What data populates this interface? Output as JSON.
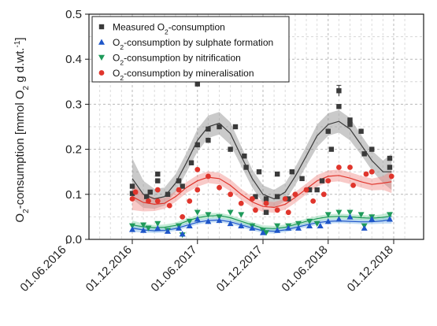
{
  "chart_data": {
    "type": "scatter",
    "title": "",
    "xlabel": "",
    "ylabel": {
      "prefix": "O",
      "sub": "2",
      "mid": "-consumption [mmol O",
      "sub2": "2",
      "tail": " g d.wt.",
      "sup": "-1",
      "end": "]"
    },
    "ylim": [
      0,
      0.5
    ],
    "yticks": [
      0.0,
      0.1,
      0.2,
      0.3,
      0.4,
      0.5
    ],
    "ytick_labels": [
      "0.0",
      "0.1",
      "0.2",
      "0.3",
      "0.4",
      "0.5"
    ],
    "xlim": [
      "2016-05-15",
      "2019-01-15"
    ],
    "xticks": [
      "2016-06-01",
      "2016-12-01",
      "2017-06-01",
      "2017-12-01",
      "2018-06-01",
      "2018-12-01"
    ],
    "xtick_labels": [
      "01.06.2016",
      "01.12.2016",
      "01.06.2017",
      "01.12.2017",
      "01.06.2018",
      "01.12.2018"
    ],
    "grid": true,
    "legend_position": "top-left",
    "legend": [
      {
        "parts": [
          "Measured O",
          "2",
          "-consumption"
        ],
        "color": "#3a3a3a",
        "marker": "square"
      },
      {
        "parts": [
          "O",
          "2",
          "-consumption by sulphate formation"
        ],
        "color": "#1f56c9",
        "marker": "triangle-up"
      },
      {
        "parts": [
          "O",
          "2",
          "-consumption by nitrification"
        ],
        "color": "#1e9a5a",
        "marker": "triangle-down"
      },
      {
        "parts": [
          "O",
          "2",
          "-consumption by mineralisation"
        ],
        "color": "#e0352c",
        "marker": "circle"
      }
    ],
    "series": [
      {
        "legend_index": 0,
        "color": "#3a3a3a",
        "band_color": "#8a8a8a",
        "marker": "square",
        "points": [
          [
            "2016-12-01",
            0.118
          ],
          [
            "2016-12-01",
            0.102
          ],
          [
            "2017-01-10",
            0.095
          ],
          [
            "2017-01-20",
            0.105
          ],
          [
            "2017-02-10",
            0.145
          ],
          [
            "2017-02-10",
            0.13
          ],
          [
            "2017-03-10",
            0.1
          ],
          [
            "2017-04-10",
            0.13
          ],
          [
            "2017-04-20",
            0.118
          ],
          [
            "2017-05-15",
            0.17
          ],
          [
            "2017-06-01",
            0.345
          ],
          [
            "2017-06-01",
            0.21
          ],
          [
            "2017-07-01",
            0.245
          ],
          [
            "2017-07-01",
            0.22
          ],
          [
            "2017-08-01",
            0.25
          ],
          [
            "2017-09-01",
            0.2
          ],
          [
            "2017-09-15",
            0.25
          ],
          [
            "2017-10-10",
            0.185
          ],
          [
            "2017-10-15",
            0.16
          ],
          [
            "2017-11-10",
            0.095
          ],
          [
            "2017-11-20",
            0.15
          ],
          [
            "2017-12-10",
            0.06
          ],
          [
            "2017-12-10",
            0.09
          ],
          [
            "2018-01-10",
            0.095
          ],
          [
            "2018-01-10",
            0.145
          ],
          [
            "2018-02-10",
            0.09
          ],
          [
            "2018-02-20",
            0.15
          ],
          [
            "2018-03-20",
            0.135
          ],
          [
            "2018-04-10",
            0.11
          ],
          [
            "2018-05-01",
            0.11
          ],
          [
            "2018-05-15",
            0.13
          ],
          [
            "2018-06-01",
            0.24
          ],
          [
            "2018-06-10",
            0.2
          ],
          [
            "2018-07-01",
            0.33
          ],
          [
            "2018-07-01",
            0.295
          ],
          [
            "2018-08-01",
            0.265
          ],
          [
            "2018-08-01",
            0.255
          ],
          [
            "2018-09-01",
            0.24
          ],
          [
            "2018-09-10",
            0.19
          ],
          [
            "2018-10-01",
            0.2
          ],
          [
            "2018-11-20",
            0.18
          ],
          [
            "2018-11-20",
            0.16
          ]
        ],
        "fit": [
          [
            "2016-12-01",
            0.135
          ],
          [
            "2017-01-01",
            0.1
          ],
          [
            "2017-02-01",
            0.09
          ],
          [
            "2017-03-01",
            0.095
          ],
          [
            "2017-04-01",
            0.125
          ],
          [
            "2017-05-01",
            0.17
          ],
          [
            "2017-06-01",
            0.22
          ],
          [
            "2017-07-01",
            0.25
          ],
          [
            "2017-08-01",
            0.258
          ],
          [
            "2017-09-01",
            0.235
          ],
          [
            "2017-10-01",
            0.185
          ],
          [
            "2017-11-01",
            0.135
          ],
          [
            "2017-12-01",
            0.1
          ],
          [
            "2018-01-01",
            0.09
          ],
          [
            "2018-02-01",
            0.105
          ],
          [
            "2018-03-01",
            0.14
          ],
          [
            "2018-04-01",
            0.185
          ],
          [
            "2018-05-01",
            0.23
          ],
          [
            "2018-06-01",
            0.255
          ],
          [
            "2018-07-01",
            0.262
          ],
          [
            "2018-08-01",
            0.245
          ],
          [
            "2018-09-01",
            0.21
          ],
          [
            "2018-10-01",
            0.175
          ],
          [
            "2018-11-01",
            0.15
          ],
          [
            "2018-11-25",
            0.15
          ]
        ],
        "band_halfwidth": [
          0.045,
          0.03,
          0.022,
          0.02,
          0.02,
          0.022,
          0.025,
          0.025,
          0.025,
          0.025,
          0.022,
          0.02,
          0.02,
          0.02,
          0.02,
          0.02,
          0.022,
          0.025,
          0.025,
          0.025,
          0.025,
          0.022,
          0.022,
          0.025,
          0.04
        ]
      },
      {
        "legend_index": 3,
        "color": "#e0352c",
        "band_color": "#f08a84",
        "marker": "circle",
        "points": [
          [
            "2016-12-01",
            0.09
          ],
          [
            "2016-12-10",
            0.105
          ],
          [
            "2017-01-15",
            0.085
          ],
          [
            "2017-02-10",
            0.11
          ],
          [
            "2017-02-10",
            0.085
          ],
          [
            "2017-03-15",
            0.075
          ],
          [
            "2017-04-10",
            0.11
          ],
          [
            "2017-04-20",
            0.05
          ],
          [
            "2017-05-10",
            0.085
          ],
          [
            "2017-06-01",
            0.155
          ],
          [
            "2017-06-01",
            0.11
          ],
          [
            "2017-07-01",
            0.14
          ],
          [
            "2017-08-01",
            0.115
          ],
          [
            "2017-09-01",
            0.1
          ],
          [
            "2017-10-01",
            0.08
          ],
          [
            "2017-11-01",
            0.09
          ],
          [
            "2017-11-10",
            0.065
          ],
          [
            "2017-12-10",
            0.08
          ],
          [
            "2018-01-10",
            0.065
          ],
          [
            "2018-02-01",
            0.09
          ],
          [
            "2018-02-10",
            0.06
          ],
          [
            "2018-03-01",
            0.1
          ],
          [
            "2018-04-01",
            0.11
          ],
          [
            "2018-04-20",
            0.085
          ],
          [
            "2018-05-20",
            0.1
          ],
          [
            "2018-06-01",
            0.13
          ],
          [
            "2018-07-01",
            0.16
          ],
          [
            "2018-08-01",
            0.16
          ],
          [
            "2018-08-10",
            0.12
          ],
          [
            "2018-09-15",
            0.145
          ],
          [
            "2018-10-01",
            0.15
          ],
          [
            "2018-11-25",
            0.14
          ]
        ],
        "fit": [
          [
            "2016-12-01",
            0.095
          ],
          [
            "2017-01-01",
            0.082
          ],
          [
            "2017-02-01",
            0.078
          ],
          [
            "2017-03-01",
            0.08
          ],
          [
            "2017-04-01",
            0.095
          ],
          [
            "2017-05-01",
            0.115
          ],
          [
            "2017-06-01",
            0.13
          ],
          [
            "2017-07-01",
            0.138
          ],
          [
            "2017-08-01",
            0.135
          ],
          [
            "2017-09-01",
            0.12
          ],
          [
            "2017-10-01",
            0.1
          ],
          [
            "2017-11-01",
            0.083
          ],
          [
            "2017-12-01",
            0.073
          ],
          [
            "2018-01-01",
            0.071
          ],
          [
            "2018-02-01",
            0.078
          ],
          [
            "2018-03-01",
            0.093
          ],
          [
            "2018-04-01",
            0.112
          ],
          [
            "2018-05-01",
            0.13
          ],
          [
            "2018-06-01",
            0.14
          ],
          [
            "2018-07-01",
            0.142
          ],
          [
            "2018-08-01",
            0.136
          ],
          [
            "2018-09-01",
            0.128
          ],
          [
            "2018-10-01",
            0.122
          ],
          [
            "2018-11-01",
            0.125
          ],
          [
            "2018-11-25",
            0.128
          ]
        ],
        "band_halfwidth": [
          0.03,
          0.02,
          0.015,
          0.012,
          0.012,
          0.012,
          0.013,
          0.013,
          0.013,
          0.013,
          0.012,
          0.012,
          0.012,
          0.012,
          0.012,
          0.012,
          0.012,
          0.013,
          0.013,
          0.013,
          0.013,
          0.013,
          0.013,
          0.015,
          0.025
        ]
      },
      {
        "legend_index": 2,
        "color": "#1e9a5a",
        "band_color": "#7ed3a4",
        "marker": "triangle-down",
        "points": [
          [
            "2016-12-01",
            0.03
          ],
          [
            "2017-01-01",
            0.032
          ],
          [
            "2017-01-15",
            0.025
          ],
          [
            "2017-02-10",
            0.035
          ],
          [
            "2017-03-10",
            0.02
          ],
          [
            "2017-04-10",
            0.03
          ],
          [
            "2017-04-20",
            0.01
          ],
          [
            "2017-05-10",
            0.04
          ],
          [
            "2017-06-01",
            0.06
          ],
          [
            "2017-07-01",
            0.055
          ],
          [
            "2017-08-01",
            0.05
          ],
          [
            "2017-09-01",
            0.06
          ],
          [
            "2017-10-01",
            0.055
          ],
          [
            "2017-11-01",
            0.03
          ],
          [
            "2017-12-01",
            0.02
          ],
          [
            "2017-12-10",
            0.015
          ],
          [
            "2018-01-10",
            0.03
          ],
          [
            "2018-02-10",
            0.03
          ],
          [
            "2018-03-10",
            0.035
          ],
          [
            "2018-04-10",
            0.04
          ],
          [
            "2018-05-01",
            0.035
          ],
          [
            "2018-06-01",
            0.055
          ],
          [
            "2018-07-01",
            0.06
          ],
          [
            "2018-08-01",
            0.06
          ],
          [
            "2018-09-01",
            0.055
          ],
          [
            "2018-09-10",
            0.03
          ],
          [
            "2018-10-01",
            0.05
          ],
          [
            "2018-11-20",
            0.055
          ]
        ],
        "fit": [
          [
            "2016-12-01",
            0.032
          ],
          [
            "2017-01-01",
            0.028
          ],
          [
            "2017-02-01",
            0.026
          ],
          [
            "2017-03-01",
            0.027
          ],
          [
            "2017-04-01",
            0.031
          ],
          [
            "2017-05-01",
            0.04
          ],
          [
            "2017-06-01",
            0.048
          ],
          [
            "2017-07-01",
            0.052
          ],
          [
            "2017-08-01",
            0.053
          ],
          [
            "2017-09-01",
            0.048
          ],
          [
            "2017-10-01",
            0.04
          ],
          [
            "2017-11-01",
            0.032
          ],
          [
            "2017-12-01",
            0.025
          ],
          [
            "2018-01-01",
            0.024
          ],
          [
            "2018-02-01",
            0.027
          ],
          [
            "2018-03-01",
            0.033
          ],
          [
            "2018-04-01",
            0.04
          ],
          [
            "2018-05-01",
            0.046
          ],
          [
            "2018-06-01",
            0.05
          ],
          [
            "2018-07-01",
            0.051
          ],
          [
            "2018-08-01",
            0.05
          ],
          [
            "2018-09-01",
            0.048
          ],
          [
            "2018-10-01",
            0.047
          ],
          [
            "2018-11-01",
            0.049
          ],
          [
            "2018-11-25",
            0.052
          ]
        ],
        "band_halfwidth": [
          0.01,
          0.007,
          0.006,
          0.006,
          0.006,
          0.006,
          0.006,
          0.006,
          0.006,
          0.006,
          0.006,
          0.006,
          0.006,
          0.006,
          0.006,
          0.006,
          0.006,
          0.006,
          0.006,
          0.006,
          0.006,
          0.006,
          0.006,
          0.007,
          0.01
        ]
      },
      {
        "legend_index": 1,
        "color": "#1f56c9",
        "band_color": "#7fb6e8",
        "marker": "triangle-up",
        "points": [
          [
            "2016-12-01",
            0.022
          ],
          [
            "2017-01-01",
            0.02
          ],
          [
            "2017-02-10",
            0.025
          ],
          [
            "2017-03-10",
            0.018
          ],
          [
            "2017-04-10",
            0.025
          ],
          [
            "2017-04-20",
            0.012
          ],
          [
            "2017-05-10",
            0.03
          ],
          [
            "2017-06-01",
            0.045
          ],
          [
            "2017-07-01",
            0.04
          ],
          [
            "2017-08-01",
            0.042
          ],
          [
            "2017-09-01",
            0.035
          ],
          [
            "2017-10-01",
            0.03
          ],
          [
            "2017-11-01",
            0.025
          ],
          [
            "2017-12-01",
            0.015
          ],
          [
            "2018-01-10",
            0.02
          ],
          [
            "2018-02-10",
            0.025
          ],
          [
            "2018-03-10",
            0.025
          ],
          [
            "2018-04-10",
            0.03
          ],
          [
            "2018-05-10",
            0.03
          ],
          [
            "2018-06-01",
            0.04
          ],
          [
            "2018-07-01",
            0.045
          ],
          [
            "2018-08-01",
            0.05
          ],
          [
            "2018-09-10",
            0.025
          ],
          [
            "2018-10-01",
            0.045
          ],
          [
            "2018-11-20",
            0.045
          ]
        ],
        "fit": [
          [
            "2016-12-01",
            0.025
          ],
          [
            "2017-01-01",
            0.021
          ],
          [
            "2017-02-01",
            0.019
          ],
          [
            "2017-03-01",
            0.02
          ],
          [
            "2017-04-01",
            0.024
          ],
          [
            "2017-05-01",
            0.031
          ],
          [
            "2017-06-01",
            0.038
          ],
          [
            "2017-07-01",
            0.042
          ],
          [
            "2017-08-01",
            0.043
          ],
          [
            "2017-09-01",
            0.039
          ],
          [
            "2017-10-01",
            0.032
          ],
          [
            "2017-11-01",
            0.025
          ],
          [
            "2017-12-01",
            0.019
          ],
          [
            "2018-01-01",
            0.018
          ],
          [
            "2018-02-01",
            0.021
          ],
          [
            "2018-03-01",
            0.026
          ],
          [
            "2018-04-01",
            0.032
          ],
          [
            "2018-05-01",
            0.037
          ],
          [
            "2018-06-01",
            0.04
          ],
          [
            "2018-07-01",
            0.041
          ],
          [
            "2018-08-01",
            0.04
          ],
          [
            "2018-09-01",
            0.039
          ],
          [
            "2018-10-01",
            0.039
          ],
          [
            "2018-11-01",
            0.041
          ],
          [
            "2018-11-25",
            0.044
          ]
        ],
        "band_halfwidth": [
          0.009,
          0.006,
          0.005,
          0.005,
          0.005,
          0.005,
          0.005,
          0.005,
          0.005,
          0.005,
          0.005,
          0.005,
          0.005,
          0.005,
          0.005,
          0.005,
          0.005,
          0.005,
          0.005,
          0.005,
          0.005,
          0.005,
          0.005,
          0.006,
          0.009
        ]
      }
    ],
    "error_bars": [
      {
        "x": "2018-07-01",
        "y": 0.33,
        "err": 0.012,
        "color": "#3a3a3a"
      }
    ]
  }
}
